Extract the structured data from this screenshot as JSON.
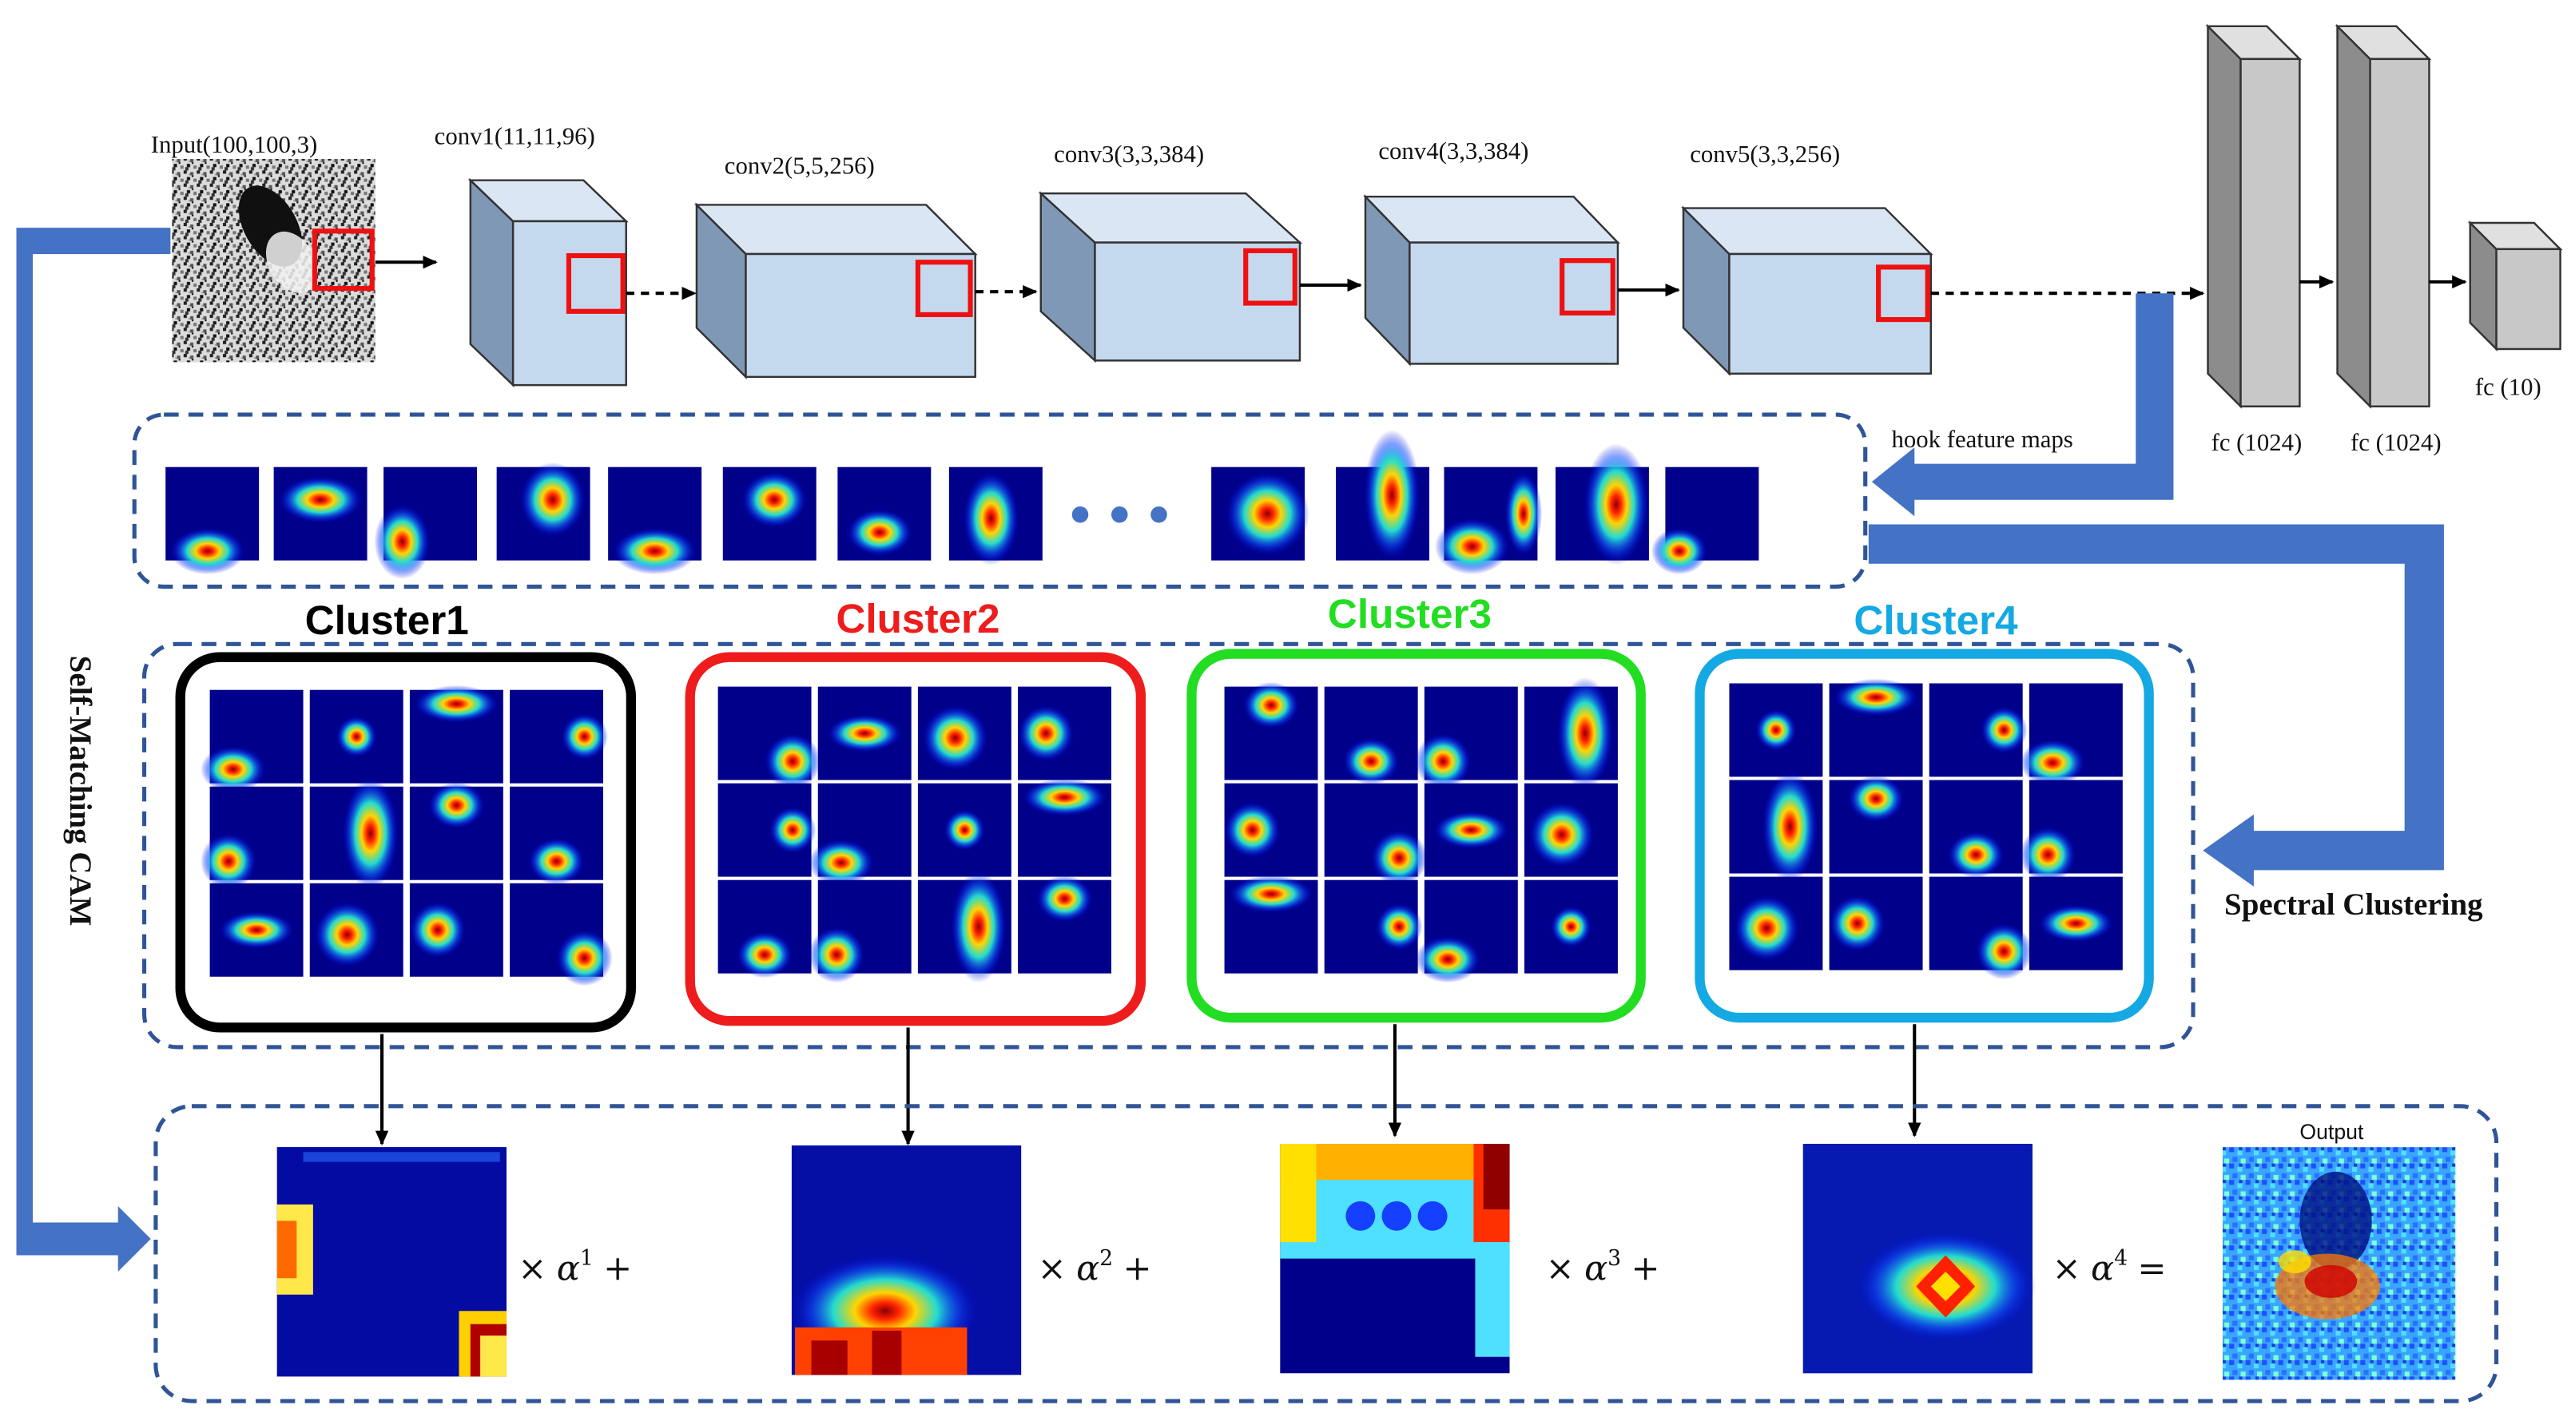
{
  "input": {
    "label": "Input(100,100,3)"
  },
  "conv_layers": [
    {
      "label": "conv1(11,11,96)"
    },
    {
      "label": "conv2(5,5,256)"
    },
    {
      "label": "conv3(3,3,384)"
    },
    {
      "label": "conv4(3,3,384)"
    },
    {
      "label": "conv5(3,3,256)"
    }
  ],
  "fc_layers": [
    {
      "label": "fc (1024)"
    },
    {
      "label": "fc (1024)"
    },
    {
      "label": "fc (10)"
    }
  ],
  "hook_label": "hook feature  maps",
  "spectral_label": "Spectral Clustering",
  "self_matching_label": "Self-Matching CAM",
  "clusters": [
    {
      "label": "Cluster1",
      "color": "#000000"
    },
    {
      "label": "Cluster2",
      "color": "#ee1c1c"
    },
    {
      "label": "Cluster3",
      "color": "#22dd22"
    },
    {
      "label": "Cluster4",
      "color": "#14a9e3"
    }
  ],
  "weights": [
    {
      "symbol": "α",
      "power": "1",
      "suffix": "+"
    },
    {
      "symbol": "α",
      "power": "2",
      "suffix": "+"
    },
    {
      "symbol": "α",
      "power": "3",
      "suffix": "+"
    },
    {
      "symbol": "α",
      "power": "4",
      "suffix": "="
    }
  ],
  "times_symbol": "×",
  "output_label": "Output",
  "colors": {
    "arrow_blue": "#4472c4",
    "dash_blue": "#2f5597",
    "box_face": "#c5d9ee",
    "heat_bg": "#00008b"
  }
}
